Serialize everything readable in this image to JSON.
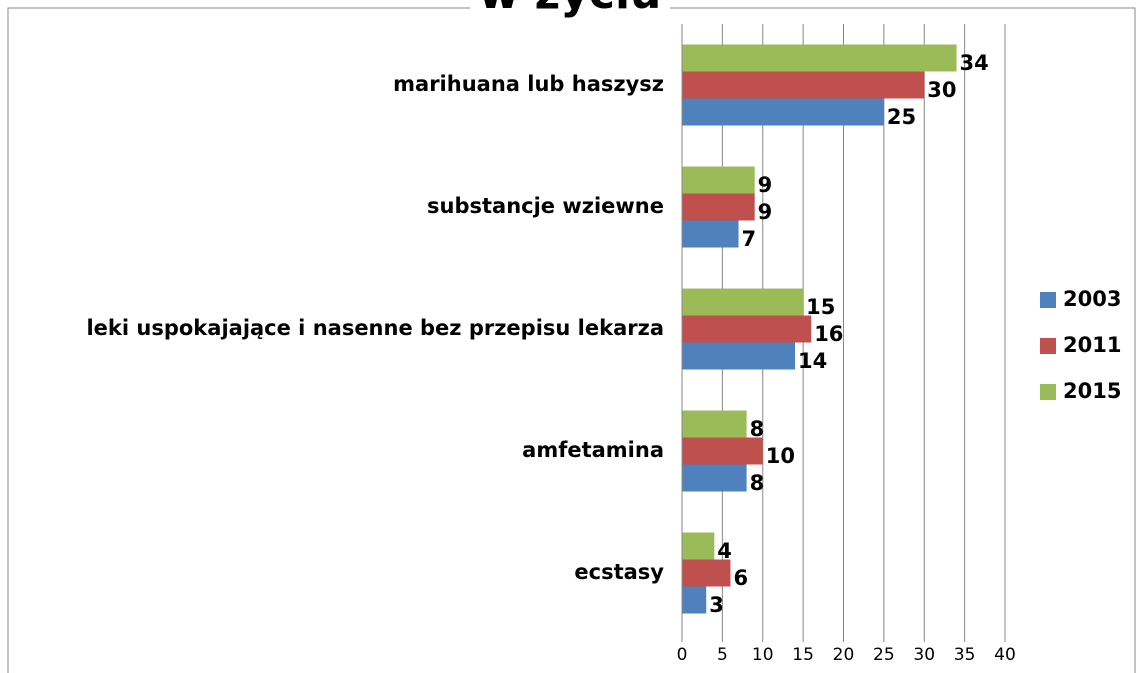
{
  "chart_data": {
    "type": "bar",
    "orientation": "horizontal",
    "title": "w życiu",
    "categories": [
      "marihuana lub haszysz",
      "substancje wziewne",
      "leki uspokajające i nasenne bez przepisu lekarza",
      "amfetamina",
      "ecstasy"
    ],
    "series": [
      {
        "name": "2003",
        "color": "#4f81bd",
        "values": [
          25,
          7,
          14,
          8,
          3
        ]
      },
      {
        "name": "2011",
        "color": "#c0504d",
        "values": [
          30,
          9,
          16,
          10,
          6
        ]
      },
      {
        "name": "2015",
        "color": "#9bbb59",
        "values": [
          34,
          9,
          15,
          8,
          4
        ]
      }
    ],
    "xlim": [
      0,
      40
    ],
    "xticks": [
      0,
      5,
      10,
      15,
      20,
      25,
      30,
      35,
      40
    ],
    "grid": true,
    "legend": "right"
  }
}
